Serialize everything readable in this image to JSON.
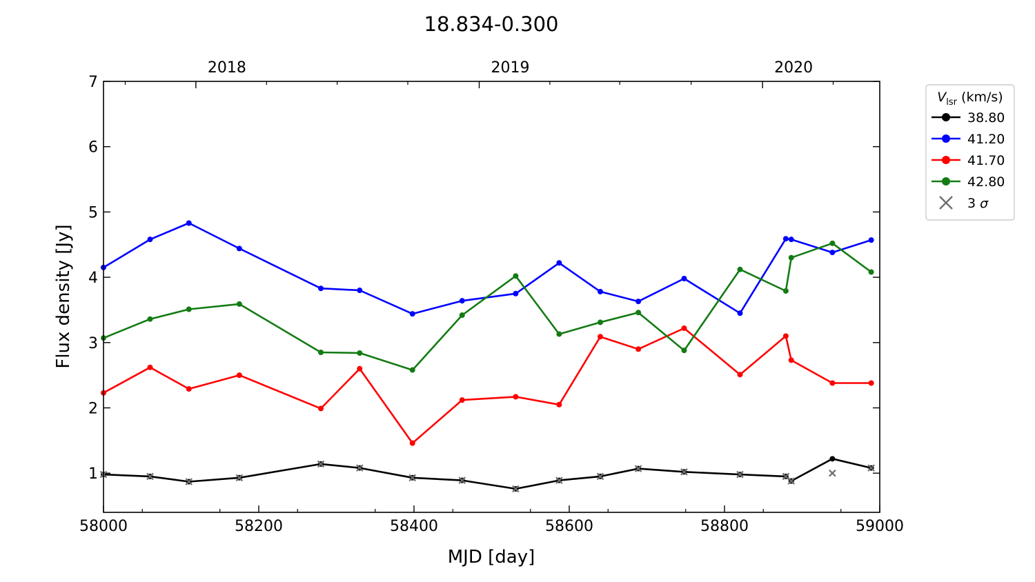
{
  "chart_data": {
    "type": "line",
    "title": "18.834-0.300",
    "xlabel": "MJD [day]",
    "ylabel": "Flux density [Jy]",
    "xlim": [
      58000,
      59000
    ],
    "ylim": [
      0.4,
      7
    ],
    "x_ticks": [
      58000,
      58200,
      58400,
      58600,
      58800,
      59000
    ],
    "y_ticks": [
      1,
      2,
      3,
      4,
      5,
      6,
      7
    ],
    "top_axis": {
      "ticks": [
        {
          "label": "2018",
          "mjd": 58119
        },
        {
          "label": "2019",
          "mjd": 58484
        },
        {
          "label": "2020",
          "mjd": 58849
        }
      ],
      "minor_ticks_mjd": [
        58028,
        58210,
        58301,
        58392,
        58575,
        58665,
        58757,
        58940
      ]
    },
    "grid": false,
    "legend": {
      "placement": "outside-right-top",
      "title_italic": "V",
      "title_sub": "lsr",
      "title_rest": " (km/s)",
      "threshold_label_prefix": "3",
      "threshold_label_symbol": "σ"
    },
    "series": [
      {
        "name": "38.80",
        "color": "#000000",
        "x": [
          58000,
          58060,
          58110,
          58175,
          58280,
          58330,
          58398,
          58462,
          58531,
          58587,
          58640,
          58689,
          58748,
          58820,
          58879,
          58886,
          58939,
          58989
        ],
        "y": [
          0.98,
          0.95,
          0.87,
          0.93,
          1.14,
          1.08,
          0.93,
          0.89,
          0.76,
          0.89,
          0.95,
          1.07,
          1.02,
          0.98,
          0.95,
          0.88,
          1.22,
          1.08
        ]
      },
      {
        "name": "41.20",
        "color": "#0000ff",
        "x": [
          58000,
          58060,
          58110,
          58175,
          58280,
          58330,
          58398,
          58462,
          58531,
          58587,
          58640,
          58689,
          58748,
          58820,
          58879,
          58886,
          58939,
          58989
        ],
        "y": [
          4.15,
          4.58,
          4.83,
          4.44,
          3.83,
          3.8,
          3.44,
          3.64,
          3.75,
          4.22,
          3.78,
          3.63,
          3.98,
          3.45,
          4.59,
          4.58,
          4.38,
          4.57
        ]
      },
      {
        "name": "41.70",
        "color": "#ff0000",
        "x": [
          58000,
          58060,
          58110,
          58175,
          58280,
          58330,
          58398,
          58462,
          58531,
          58587,
          58640,
          58689,
          58748,
          58820,
          58879,
          58886,
          58939,
          58989
        ],
        "y": [
          2.23,
          2.62,
          2.29,
          2.5,
          1.99,
          2.6,
          1.46,
          2.12,
          2.17,
          2.05,
          3.09,
          2.9,
          3.22,
          2.51,
          3.1,
          2.73,
          2.38,
          2.38
        ]
      },
      {
        "name": "42.80",
        "color": "#137b13",
        "x": [
          58000,
          58060,
          58110,
          58175,
          58280,
          58330,
          58398,
          58462,
          58531,
          58587,
          58640,
          58689,
          58748,
          58820,
          58879,
          58886,
          58939,
          58989
        ],
        "y": [
          3.07,
          3.36,
          3.51,
          3.59,
          2.85,
          2.84,
          2.58,
          3.42,
          4.02,
          3.13,
          3.31,
          3.46,
          2.88,
          4.12,
          3.79,
          4.3,
          4.52,
          4.08
        ]
      }
    ],
    "threshold_3sigma": {
      "name": "3 σ",
      "color": "#6e6e6e",
      "x": [
        58000,
        58060,
        58110,
        58175,
        58280,
        58330,
        58398,
        58462,
        58531,
        58587,
        58640,
        58689,
        58748,
        58820,
        58879,
        58886,
        58939,
        58989
      ],
      "y": [
        0.98,
        0.95,
        0.87,
        0.93,
        1.14,
        1.08,
        0.93,
        0.89,
        0.76,
        0.89,
        0.95,
        1.07,
        1.02,
        0.98,
        0.95,
        0.88,
        1.0,
        1.08
      ]
    }
  }
}
